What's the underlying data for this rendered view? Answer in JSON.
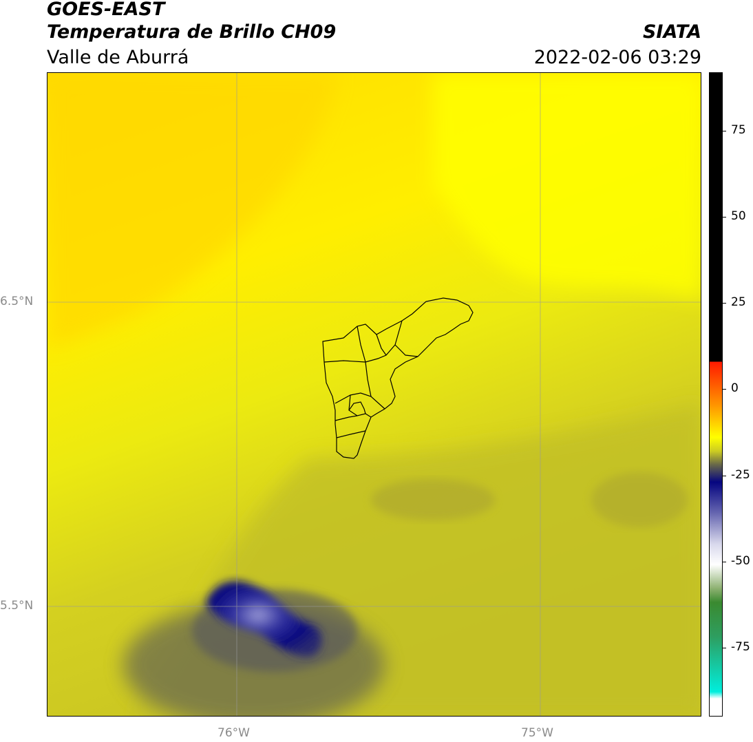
{
  "header": {
    "satellite": "GOES-EAST",
    "product": "Temperatura de Brillo CH09",
    "region": "Valle de Aburrá",
    "organization": "SIATA",
    "timestamp": "2022-02-06 03:29"
  },
  "map": {
    "lon_ticks": [
      {
        "value": -76.0,
        "label": "76°W"
      },
      {
        "value": -75.0,
        "label": "75°W"
      }
    ],
    "lat_ticks": [
      {
        "value": 6.5,
        "label": "6.5°N"
      },
      {
        "value": 5.5,
        "label": "5.5°N"
      }
    ],
    "extent": {
      "lon_min": -76.62,
      "lon_max": -74.53,
      "lat_min": 5.14,
      "lat_max": 7.25
    },
    "gridlines": true,
    "boundary": "Valle de Aburrá municipalities outline",
    "colors": {
      "warm_yellow": "#ffe000",
      "yellow": "#ffff00",
      "olive": "#cccc22",
      "dark_olive": "#77774a",
      "cold_blue": "#0a0a80",
      "cold_core": "#8888cc"
    }
  },
  "colorbar": {
    "range": [
      -95,
      92
    ],
    "ticks": [
      {
        "value": 75,
        "label": "75"
      },
      {
        "value": 50,
        "label": "50"
      },
      {
        "value": 25,
        "label": "25"
      },
      {
        "value": 0,
        "label": "0"
      },
      {
        "value": -25,
        "label": "-25"
      },
      {
        "value": -50,
        "label": "-50"
      },
      {
        "value": -75,
        "label": "-75"
      }
    ],
    "stops": [
      {
        "value": 92,
        "color": "#000000"
      },
      {
        "value": 8,
        "color": "#000000"
      },
      {
        "value": 8,
        "color": "#ff1a00"
      },
      {
        "value": -5,
        "color": "#ff9900"
      },
      {
        "value": -14,
        "color": "#ffff00"
      },
      {
        "value": -18,
        "color": "#cccc22"
      },
      {
        "value": -22,
        "color": "#66664a"
      },
      {
        "value": -27,
        "color": "#050580"
      },
      {
        "value": -36,
        "color": "#6666b0"
      },
      {
        "value": -45,
        "color": "#d8d8ec"
      },
      {
        "value": -51,
        "color": "#ffffff"
      },
      {
        "value": -58,
        "color": "#8cb070"
      },
      {
        "value": -62,
        "color": "#3a8a30"
      },
      {
        "value": -72,
        "color": "#2e9e60"
      },
      {
        "value": -88,
        "color": "#00eedd"
      },
      {
        "value": -90,
        "color": "#ffffff"
      },
      {
        "value": -95,
        "color": "#ffffff"
      }
    ]
  }
}
